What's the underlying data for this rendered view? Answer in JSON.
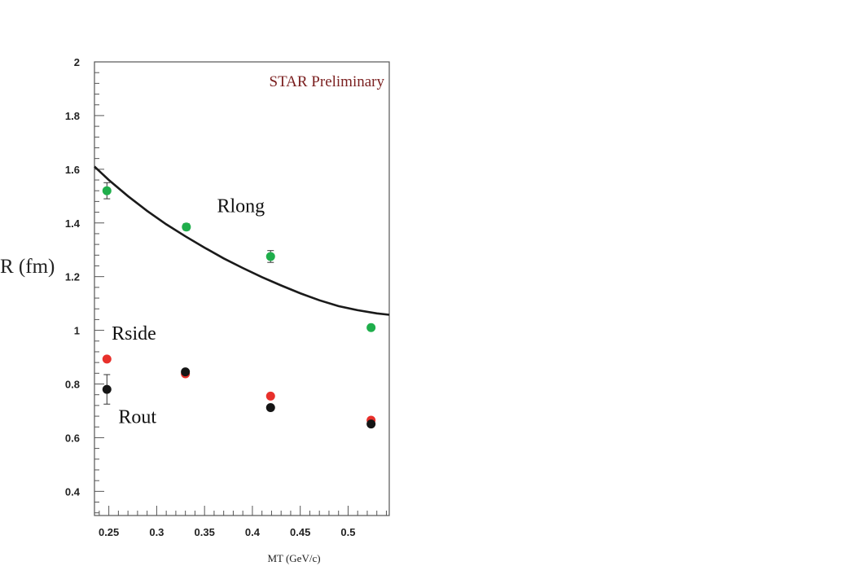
{
  "chart_data": {
    "type": "scatter",
    "title": "",
    "xlabel": "MT (GeV/c)",
    "ylabel": "R (fm)",
    "xlim": [
      0.235,
      0.543
    ],
    "ylim": [
      0.31,
      2.0
    ],
    "x_ticks": [
      0.25,
      0.3,
      0.35,
      0.4,
      0.45,
      0.5
    ],
    "x_tick_labels": [
      "0.25",
      "0.3",
      "0.35",
      "0.4",
      "0.45",
      "0.5"
    ],
    "y_ticks": [
      0.4,
      0.6,
      0.8,
      1.0,
      1.2,
      1.4,
      1.6,
      1.8,
      2.0
    ],
    "y_tick_labels": [
      "0.4",
      "0.6",
      "0.8",
      "1",
      "1.2",
      "1.4",
      "1.6",
      "1.8",
      "2"
    ],
    "grid": false,
    "legend": null,
    "annotation": "STAR Preliminary",
    "series": [
      {
        "name": "Rlong",
        "color": "#1fae4b",
        "marker": "circle",
        "points": [
          {
            "x": 0.248,
            "y": 1.52,
            "err": 0.03
          },
          {
            "x": 0.331,
            "y": 1.385,
            "err": 0.012
          },
          {
            "x": 0.419,
            "y": 1.275,
            "err": 0.022
          },
          {
            "x": 0.524,
            "y": 1.01,
            "err": 0.008
          }
        ]
      },
      {
        "name": "Rside",
        "color": "#e8302b",
        "marker": "circle",
        "points": [
          {
            "x": 0.248,
            "y": 0.893,
            "err": 0.01
          },
          {
            "x": 0.33,
            "y": 0.838,
            "err": 0.01
          },
          {
            "x": 0.419,
            "y": 0.755,
            "err": 0.01
          },
          {
            "x": 0.524,
            "y": 0.665,
            "err": 0.01
          }
        ]
      },
      {
        "name": "Rout",
        "color": "#151515",
        "marker": "circle",
        "points": [
          {
            "x": 0.248,
            "y": 0.78,
            "err": 0.055
          },
          {
            "x": 0.33,
            "y": 0.845,
            "err": 0.01
          },
          {
            "x": 0.419,
            "y": 0.712,
            "err": 0.01
          },
          {
            "x": 0.524,
            "y": 0.651,
            "err": 0.01
          }
        ]
      }
    ],
    "curve": {
      "color": "#1a1a1a",
      "x": [
        0.235,
        0.25,
        0.27,
        0.29,
        0.31,
        0.33,
        0.35,
        0.37,
        0.39,
        0.41,
        0.43,
        0.45,
        0.47,
        0.49,
        0.51,
        0.53,
        0.543
      ],
      "y": [
        1.61,
        1.56,
        1.5,
        1.445,
        1.395,
        1.35,
        1.308,
        1.268,
        1.232,
        1.198,
        1.167,
        1.138,
        1.112,
        1.09,
        1.075,
        1.063,
        1.058
      ]
    },
    "series_labels": [
      {
        "text": "Rlong",
        "x": 0.363,
        "y": 1.44
      },
      {
        "text": "Rside",
        "x": 0.253,
        "y": 0.965
      },
      {
        "text": "Rout",
        "x": 0.26,
        "y": 0.655
      }
    ]
  }
}
